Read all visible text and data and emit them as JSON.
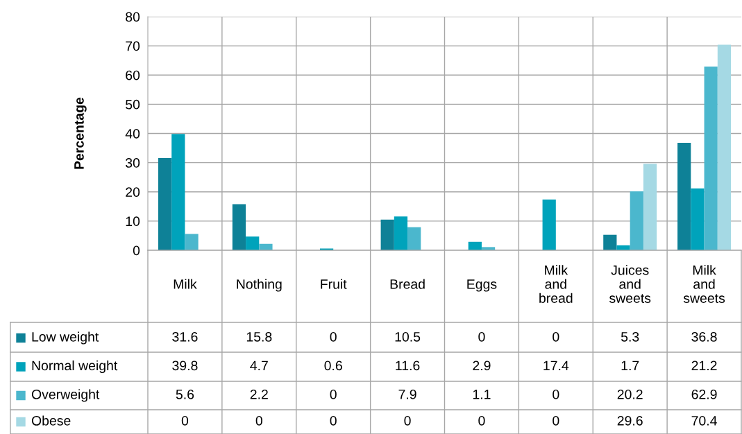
{
  "chart_data": {
    "type": "bar",
    "ylabel": "Percentage",
    "categories": [
      "Milk",
      "Nothing",
      "Fruit",
      "Bread",
      "Eggs",
      "Milk\nand\nbread",
      "Juices\nand\nsweets",
      "Milk\nand\nsweets"
    ],
    "series": [
      {
        "name": "Low weight",
        "color": "#0e8197",
        "values": [
          31.6,
          15.8,
          0,
          10.5,
          0,
          0,
          5.3,
          36.8
        ]
      },
      {
        "name": "Normal weight",
        "color": "#00a3bb",
        "values": [
          39.8,
          4.7,
          0.6,
          11.6,
          2.9,
          17.4,
          1.7,
          21.2
        ]
      },
      {
        "name": "Overweight",
        "color": "#4bb7cd",
        "values": [
          5.6,
          2.2,
          0,
          7.9,
          1.1,
          0,
          20.2,
          62.9
        ]
      },
      {
        "name": "Obese",
        "color": "#a5d9e4",
        "values": [
          0,
          0,
          0,
          0,
          0,
          0,
          29.6,
          70.4
        ]
      }
    ],
    "ylim": [
      0,
      80
    ],
    "yticks": [
      0,
      10,
      20,
      30,
      40,
      50,
      60,
      70,
      80
    ],
    "grid": true,
    "legend": "bottom left",
    "data_labels": true
  }
}
